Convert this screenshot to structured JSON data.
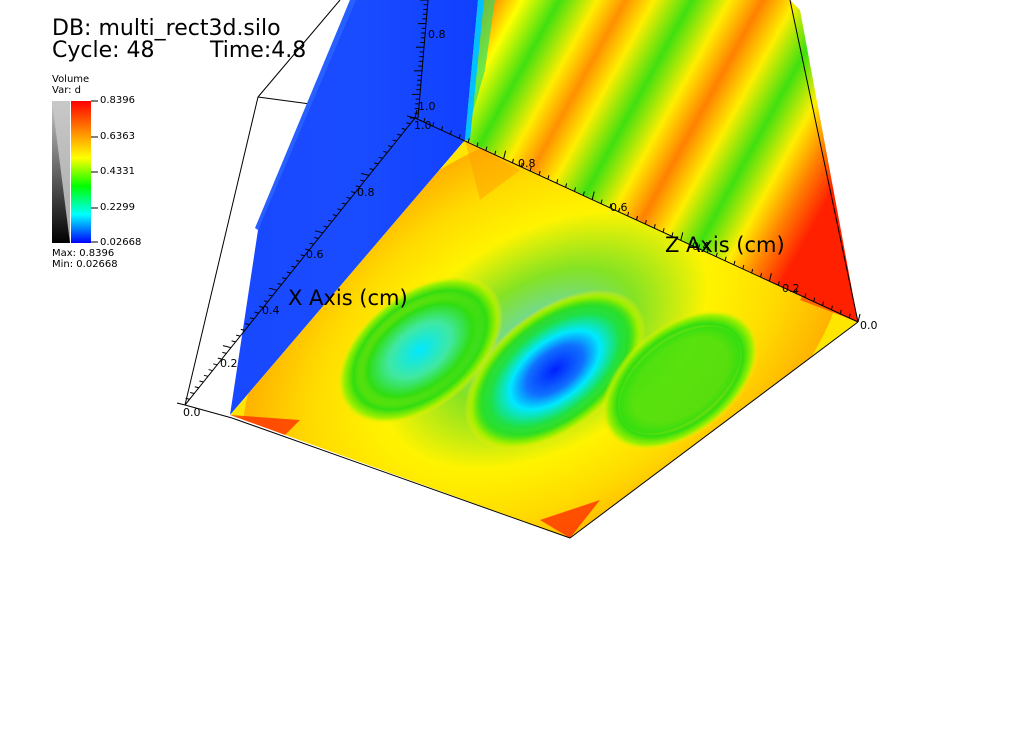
{
  "header": {
    "db_line": "DB: multi_rect3d.silo",
    "cycle_line": "Cycle: 48",
    "time_line": "Time:4.8"
  },
  "legend": {
    "title": "Volume",
    "var_line": "Var: d",
    "ticks": [
      "0.8396",
      "0.6363",
      "0.4331",
      "0.2299",
      "0.02668"
    ],
    "max_line": "Max: 0.8396",
    "min_line": "Min: 0.02668",
    "colors": [
      "#ff0000",
      "#ff8000",
      "#ffff00",
      "#00ff00",
      "#00ffff",
      "#0000ff"
    ]
  },
  "axes": {
    "x_title": "X Axis (cm)",
    "z_title": "Z Axis (cm)",
    "x_ticks": [
      "0.0",
      "0.2",
      "0.4",
      "0.6",
      "0.8"
    ],
    "z_ticks": [
      "0.0",
      "0.2",
      "0.4",
      "0.6",
      "0.8"
    ],
    "y_ticks": [
      "1.0",
      "0.8"
    ],
    "corner_label": "1.0"
  },
  "colors": {
    "red": "#ff2000",
    "orange": "#ff8a00",
    "yellow": "#ffee00",
    "green": "#30dd10",
    "cyan": "#00e8ff",
    "blue": "#1040ff"
  }
}
